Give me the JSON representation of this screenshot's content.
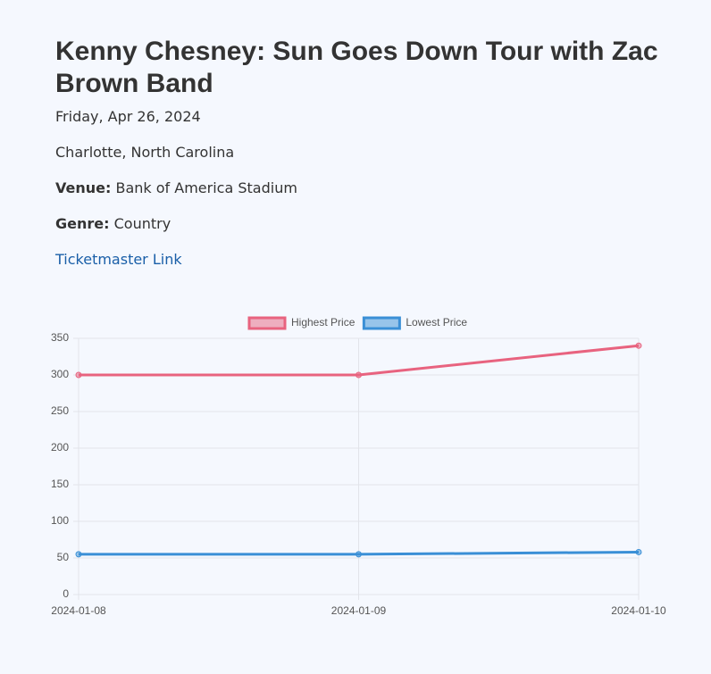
{
  "header": {
    "title": "Kenny Chesney: Sun Goes Down Tour with Zac Brown Band"
  },
  "details": {
    "date": "Friday, Apr 26, 2024",
    "location": "Charlotte, North Carolina",
    "venue_label": "Venue:",
    "venue": "Bank of America Stadium",
    "genre_label": "Genre:",
    "genre": "Country",
    "link": "Ticketmaster Link"
  },
  "chart_data": {
    "type": "line",
    "categories": [
      "2024-01-08",
      "2024-01-09",
      "2024-01-10"
    ],
    "series": [
      {
        "name": "Highest Price",
        "color": "#e8637f",
        "values": [
          300,
          300,
          340
        ]
      },
      {
        "name": "Lowest Price",
        "color": "#3a8fd6",
        "values": [
          55,
          55,
          58
        ]
      }
    ],
    "ylim": [
      0,
      350
    ],
    "yticks": [
      0,
      50,
      100,
      150,
      200,
      250,
      300,
      350
    ],
    "grid": true,
    "legend": "top"
  }
}
